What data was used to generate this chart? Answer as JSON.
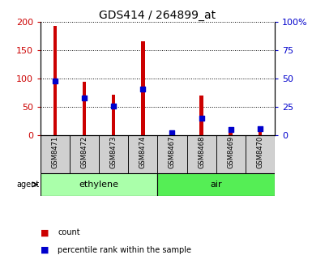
{
  "title": "GDS414 / 264899_at",
  "samples": [
    "GSM8471",
    "GSM8472",
    "GSM8473",
    "GSM8474",
    "GSM8467",
    "GSM8468",
    "GSM8469",
    "GSM8470"
  ],
  "counts": [
    193,
    95,
    71,
    166,
    5,
    70,
    11,
    13
  ],
  "percentiles": [
    48,
    33,
    26,
    41,
    2,
    15,
    5,
    6
  ],
  "groups": [
    {
      "label": "ethylene",
      "start": 0,
      "end": 4,
      "color": "#aaffaa"
    },
    {
      "label": "air",
      "start": 4,
      "end": 8,
      "color": "#55ee55"
    }
  ],
  "agent_label": "agent",
  "ylim_left": [
    0,
    200
  ],
  "ylim_right": [
    0,
    100
  ],
  "yticks_left": [
    0,
    50,
    100,
    150,
    200
  ],
  "yticks_right": [
    0,
    25,
    50,
    75,
    100
  ],
  "ytick_labels_right": [
    "0",
    "25",
    "50",
    "75",
    "100%"
  ],
  "ytick_labels_left": [
    "0",
    "50",
    "100",
    "150",
    "200"
  ],
  "bar_color_count": "#cc0000",
  "bar_color_percentile": "#0000cc",
  "bar_width": 0.12,
  "background_color": "#ffffff",
  "grid_color": "#000000",
  "legend_count": "count",
  "legend_percentile": "percentile rank within the sample"
}
